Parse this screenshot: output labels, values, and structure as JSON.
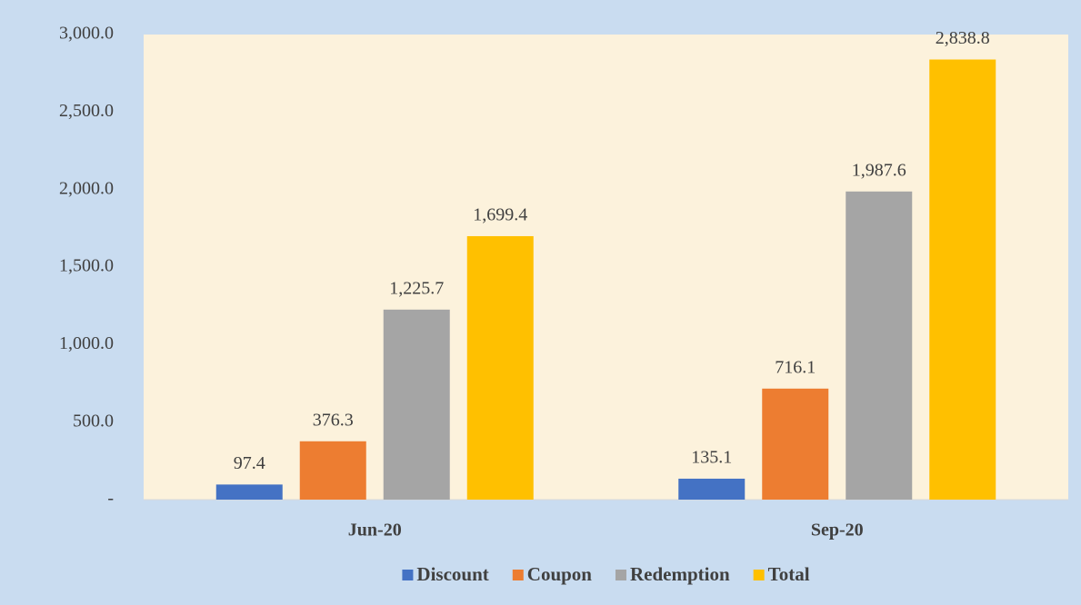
{
  "chart_data": {
    "type": "bar",
    "categories": [
      "Jun-20",
      "Sep-20"
    ],
    "series": [
      {
        "name": "Discount",
        "color": "#4472c4",
        "values": [
          97.4,
          135.1
        ],
        "value_labels": [
          "97.4",
          "135.1"
        ]
      },
      {
        "name": "Coupon",
        "color": "#ed7d31",
        "values": [
          376.3,
          716.1
        ],
        "value_labels": [
          "376.3",
          "716.1"
        ]
      },
      {
        "name": "Redemption",
        "color": "#a5a5a5",
        "values": [
          1225.7,
          1987.6
        ],
        "value_labels": [
          "1,225.7",
          "1,987.6"
        ]
      },
      {
        "name": "Total",
        "color": "#ffc000",
        "values": [
          1699.4,
          2838.8
        ],
        "value_labels": [
          "1,699.4",
          "2,838.8"
        ]
      }
    ],
    "ylim": [
      0,
      3000
    ],
    "yticks": [
      {
        "value": 0,
        "label": "-"
      },
      {
        "value": 500,
        "label": "500.0"
      },
      {
        "value": 1000,
        "label": "1,000.0"
      },
      {
        "value": 1500,
        "label": "1,500.0"
      },
      {
        "value": 2000,
        "label": "2,000.0"
      },
      {
        "value": 2500,
        "label": "2,500.0"
      },
      {
        "value": 3000,
        "label": "3,000.0"
      }
    ],
    "legend": "bottom"
  }
}
